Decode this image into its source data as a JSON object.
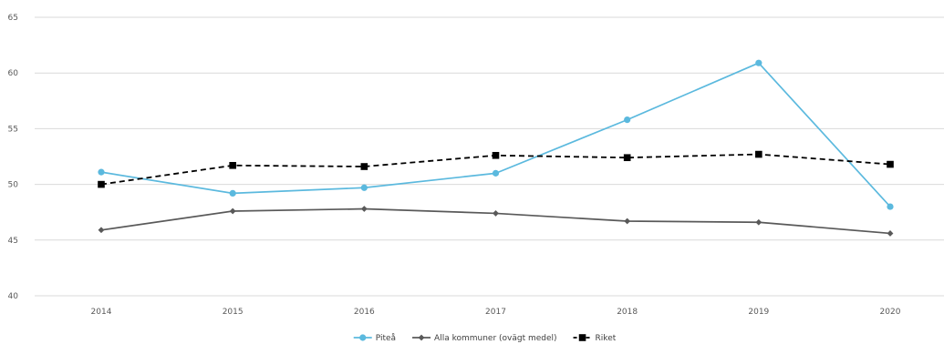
{
  "chart_data": {
    "type": "line",
    "title": "",
    "xlabel": "",
    "ylabel": "",
    "categories": [
      "2014",
      "2015",
      "2016",
      "2017",
      "2018",
      "2019",
      "2020"
    ],
    "ylim": [
      40,
      65
    ],
    "yticks": [
      40,
      45,
      50,
      55,
      60,
      65
    ],
    "grid": true,
    "legend_position": "bottom",
    "series": [
      {
        "name": "Piteå",
        "values": [
          51.1,
          49.2,
          49.7,
          51.0,
          55.8,
          60.9,
          48.0
        ],
        "color": "#5BB9DE",
        "dash": "solid",
        "marker": "circle"
      },
      {
        "name": "Alla kommuner (ovägt medel)",
        "values": [
          45.9,
          47.6,
          47.8,
          47.4,
          46.7,
          46.6,
          45.6
        ],
        "color": "#595959",
        "dash": "solid",
        "marker": "diamond"
      },
      {
        "name": "Riket",
        "values": [
          50.0,
          51.7,
          51.6,
          52.6,
          52.4,
          52.7,
          51.8
        ],
        "color": "#000000",
        "dash": "dashed",
        "marker": "square"
      }
    ]
  }
}
